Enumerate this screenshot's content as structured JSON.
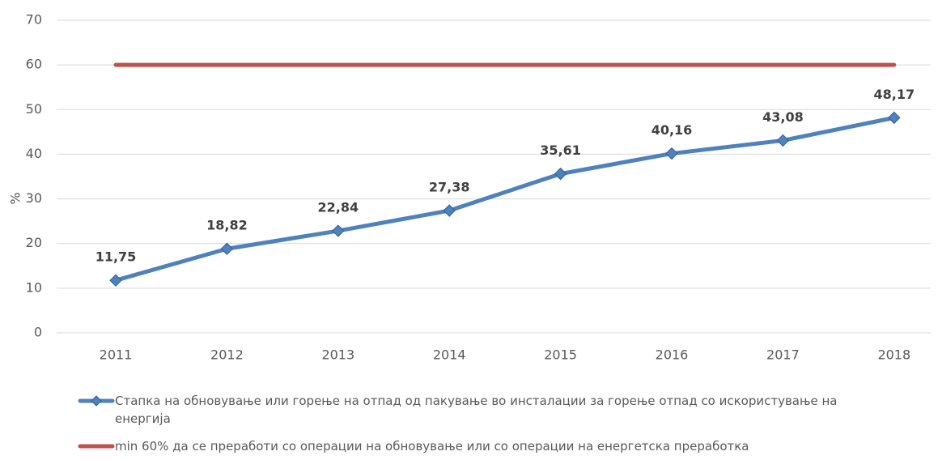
{
  "chart_data": {
    "type": "line",
    "categories": [
      "2011",
      "2012",
      "2013",
      "2014",
      "2015",
      "2016",
      "2017",
      "2018"
    ],
    "ylabel": "%",
    "ylim": [
      0,
      70
    ],
    "yticks": [
      0,
      10,
      20,
      30,
      40,
      50,
      60,
      70
    ],
    "grid": true,
    "series": [
      {
        "name": "Стапка на обновување или горење на отпад од пакување во инсталации за горење отпад со искористување на енергија",
        "color": "#4f81bd",
        "marker": "diamond",
        "values": [
          11.75,
          18.82,
          22.84,
          27.38,
          35.61,
          40.16,
          43.08,
          48.17
        ],
        "value_labels": [
          "11,75",
          "18,82",
          "22,84",
          "27,38",
          "35,61",
          "40,16",
          "43,08",
          "48,17"
        ]
      },
      {
        "name": "min 60% да се преработи со операции на обновување или со операции на енергетска преработка",
        "color": "#c0504d",
        "values": [
          60,
          60,
          60,
          60,
          60,
          60,
          60,
          60
        ]
      }
    ]
  }
}
